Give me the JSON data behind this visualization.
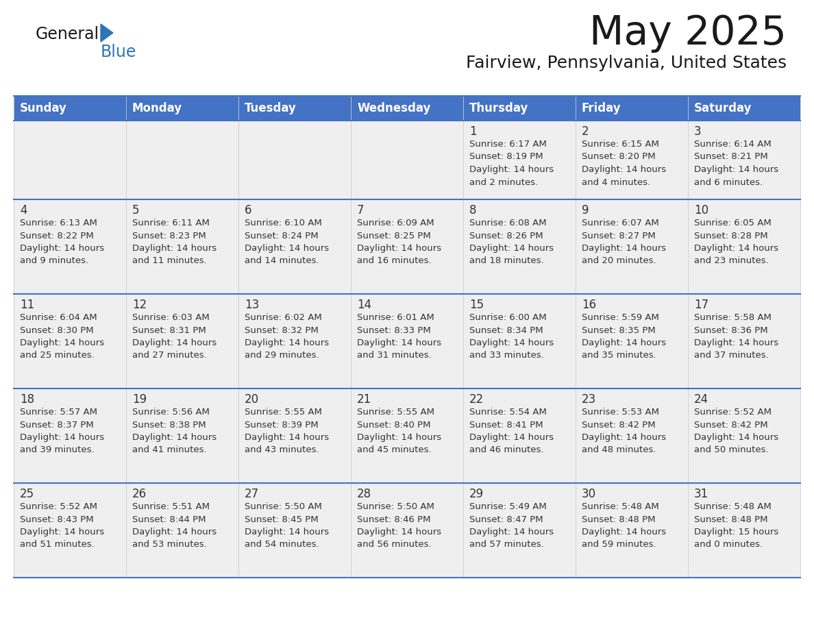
{
  "title": "May 2025",
  "subtitle": "Fairview, Pennsylvania, United States",
  "header_bg": "#4472C4",
  "header_text_color": "#FFFFFF",
  "row_bg": "#EFEFEF",
  "grid_line_color": "#4472C4",
  "day_number_color": "#333333",
  "cell_text_color": "#333333",
  "background_color": "#FFFFFF",
  "day_names": [
    "Sunday",
    "Monday",
    "Tuesday",
    "Wednesday",
    "Thursday",
    "Friday",
    "Saturday"
  ],
  "calendar_data": [
    [
      {
        "day": "",
        "sunrise": "",
        "sunset": "",
        "daylight_h": "",
        "daylight_m": ""
      },
      {
        "day": "",
        "sunrise": "",
        "sunset": "",
        "daylight_h": "",
        "daylight_m": ""
      },
      {
        "day": "",
        "sunrise": "",
        "sunset": "",
        "daylight_h": "",
        "daylight_m": ""
      },
      {
        "day": "",
        "sunrise": "",
        "sunset": "",
        "daylight_h": "",
        "daylight_m": ""
      },
      {
        "day": "1",
        "sunrise": "6:17 AM",
        "sunset": "8:19 PM",
        "daylight_h": "14 hours",
        "daylight_m": "and 2 minutes."
      },
      {
        "day": "2",
        "sunrise": "6:15 AM",
        "sunset": "8:20 PM",
        "daylight_h": "14 hours",
        "daylight_m": "and 4 minutes."
      },
      {
        "day": "3",
        "sunrise": "6:14 AM",
        "sunset": "8:21 PM",
        "daylight_h": "14 hours",
        "daylight_m": "and 6 minutes."
      }
    ],
    [
      {
        "day": "4",
        "sunrise": "6:13 AM",
        "sunset": "8:22 PM",
        "daylight_h": "14 hours",
        "daylight_m": "and 9 minutes."
      },
      {
        "day": "5",
        "sunrise": "6:11 AM",
        "sunset": "8:23 PM",
        "daylight_h": "14 hours",
        "daylight_m": "and 11 minutes."
      },
      {
        "day": "6",
        "sunrise": "6:10 AM",
        "sunset": "8:24 PM",
        "daylight_h": "14 hours",
        "daylight_m": "and 14 minutes."
      },
      {
        "day": "7",
        "sunrise": "6:09 AM",
        "sunset": "8:25 PM",
        "daylight_h": "14 hours",
        "daylight_m": "and 16 minutes."
      },
      {
        "day": "8",
        "sunrise": "6:08 AM",
        "sunset": "8:26 PM",
        "daylight_h": "14 hours",
        "daylight_m": "and 18 minutes."
      },
      {
        "day": "9",
        "sunrise": "6:07 AM",
        "sunset": "8:27 PM",
        "daylight_h": "14 hours",
        "daylight_m": "and 20 minutes."
      },
      {
        "day": "10",
        "sunrise": "6:05 AM",
        "sunset": "8:28 PM",
        "daylight_h": "14 hours",
        "daylight_m": "and 23 minutes."
      }
    ],
    [
      {
        "day": "11",
        "sunrise": "6:04 AM",
        "sunset": "8:30 PM",
        "daylight_h": "14 hours",
        "daylight_m": "and 25 minutes."
      },
      {
        "day": "12",
        "sunrise": "6:03 AM",
        "sunset": "8:31 PM",
        "daylight_h": "14 hours",
        "daylight_m": "and 27 minutes."
      },
      {
        "day": "13",
        "sunrise": "6:02 AM",
        "sunset": "8:32 PM",
        "daylight_h": "14 hours",
        "daylight_m": "and 29 minutes."
      },
      {
        "day": "14",
        "sunrise": "6:01 AM",
        "sunset": "8:33 PM",
        "daylight_h": "14 hours",
        "daylight_m": "and 31 minutes."
      },
      {
        "day": "15",
        "sunrise": "6:00 AM",
        "sunset": "8:34 PM",
        "daylight_h": "14 hours",
        "daylight_m": "and 33 minutes."
      },
      {
        "day": "16",
        "sunrise": "5:59 AM",
        "sunset": "8:35 PM",
        "daylight_h": "14 hours",
        "daylight_m": "and 35 minutes."
      },
      {
        "day": "17",
        "sunrise": "5:58 AM",
        "sunset": "8:36 PM",
        "daylight_h": "14 hours",
        "daylight_m": "and 37 minutes."
      }
    ],
    [
      {
        "day": "18",
        "sunrise": "5:57 AM",
        "sunset": "8:37 PM",
        "daylight_h": "14 hours",
        "daylight_m": "and 39 minutes."
      },
      {
        "day": "19",
        "sunrise": "5:56 AM",
        "sunset": "8:38 PM",
        "daylight_h": "14 hours",
        "daylight_m": "and 41 minutes."
      },
      {
        "day": "20",
        "sunrise": "5:55 AM",
        "sunset": "8:39 PM",
        "daylight_h": "14 hours",
        "daylight_m": "and 43 minutes."
      },
      {
        "day": "21",
        "sunrise": "5:55 AM",
        "sunset": "8:40 PM",
        "daylight_h": "14 hours",
        "daylight_m": "and 45 minutes."
      },
      {
        "day": "22",
        "sunrise": "5:54 AM",
        "sunset": "8:41 PM",
        "daylight_h": "14 hours",
        "daylight_m": "and 46 minutes."
      },
      {
        "day": "23",
        "sunrise": "5:53 AM",
        "sunset": "8:42 PM",
        "daylight_h": "14 hours",
        "daylight_m": "and 48 minutes."
      },
      {
        "day": "24",
        "sunrise": "5:52 AM",
        "sunset": "8:42 PM",
        "daylight_h": "14 hours",
        "daylight_m": "and 50 minutes."
      }
    ],
    [
      {
        "day": "25",
        "sunrise": "5:52 AM",
        "sunset": "8:43 PM",
        "daylight_h": "14 hours",
        "daylight_m": "and 51 minutes."
      },
      {
        "day": "26",
        "sunrise": "5:51 AM",
        "sunset": "8:44 PM",
        "daylight_h": "14 hours",
        "daylight_m": "and 53 minutes."
      },
      {
        "day": "27",
        "sunrise": "5:50 AM",
        "sunset": "8:45 PM",
        "daylight_h": "14 hours",
        "daylight_m": "and 54 minutes."
      },
      {
        "day": "28",
        "sunrise": "5:50 AM",
        "sunset": "8:46 PM",
        "daylight_h": "14 hours",
        "daylight_m": "and 56 minutes."
      },
      {
        "day": "29",
        "sunrise": "5:49 AM",
        "sunset": "8:47 PM",
        "daylight_h": "14 hours",
        "daylight_m": "and 57 minutes."
      },
      {
        "day": "30",
        "sunrise": "5:48 AM",
        "sunset": "8:48 PM",
        "daylight_h": "14 hours",
        "daylight_m": "and 59 minutes."
      },
      {
        "day": "31",
        "sunrise": "5:48 AM",
        "sunset": "8:48 PM",
        "daylight_h": "15 hours",
        "daylight_m": "and 0 minutes."
      }
    ]
  ]
}
